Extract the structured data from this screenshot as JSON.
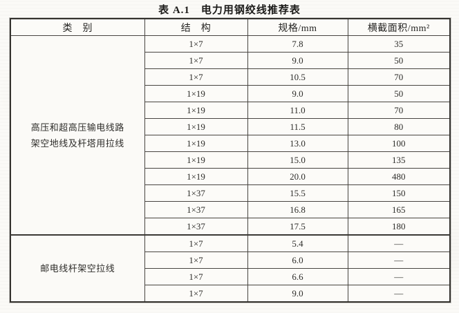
{
  "title": "表 A.1　电力用钢绞线推荐表",
  "table": {
    "headers": [
      "类　别",
      "结　构",
      "规格/mm",
      "横截面积/mm²"
    ],
    "sections": [
      {
        "category": [
          "高压和超高压输电线路",
          "架空地线及杆塔用拉线"
        ],
        "rows": [
          {
            "structure": "1×7",
            "spec": "7.8",
            "area": "35"
          },
          {
            "structure": "1×7",
            "spec": "9.0",
            "area": "50"
          },
          {
            "structure": "1×7",
            "spec": "10.5",
            "area": "70"
          },
          {
            "structure": "1×19",
            "spec": "9.0",
            "area": "50"
          },
          {
            "structure": "1×19",
            "spec": "11.0",
            "area": "70"
          },
          {
            "structure": "1×19",
            "spec": "11.5",
            "area": "80"
          },
          {
            "structure": "1×19",
            "spec": "13.0",
            "area": "100"
          },
          {
            "structure": "1×19",
            "spec": "15.0",
            "area": "135"
          },
          {
            "structure": "1×19",
            "spec": "20.0",
            "area": "480"
          },
          {
            "structure": "1×37",
            "spec": "15.5",
            "area": "150"
          },
          {
            "structure": "1×37",
            "spec": "16.8",
            "area": "165"
          },
          {
            "structure": "1×37",
            "spec": "17.5",
            "area": "180"
          }
        ]
      },
      {
        "category": [
          "邮电线杆架空拉线"
        ],
        "rows": [
          {
            "structure": "1×7",
            "spec": "5.4",
            "area": "—"
          },
          {
            "structure": "1×7",
            "spec": "6.0",
            "area": "—"
          },
          {
            "structure": "1×7",
            "spec": "6.6",
            "area": "—"
          },
          {
            "structure": "1×7",
            "spec": "9.0",
            "area": "—"
          }
        ]
      }
    ]
  }
}
